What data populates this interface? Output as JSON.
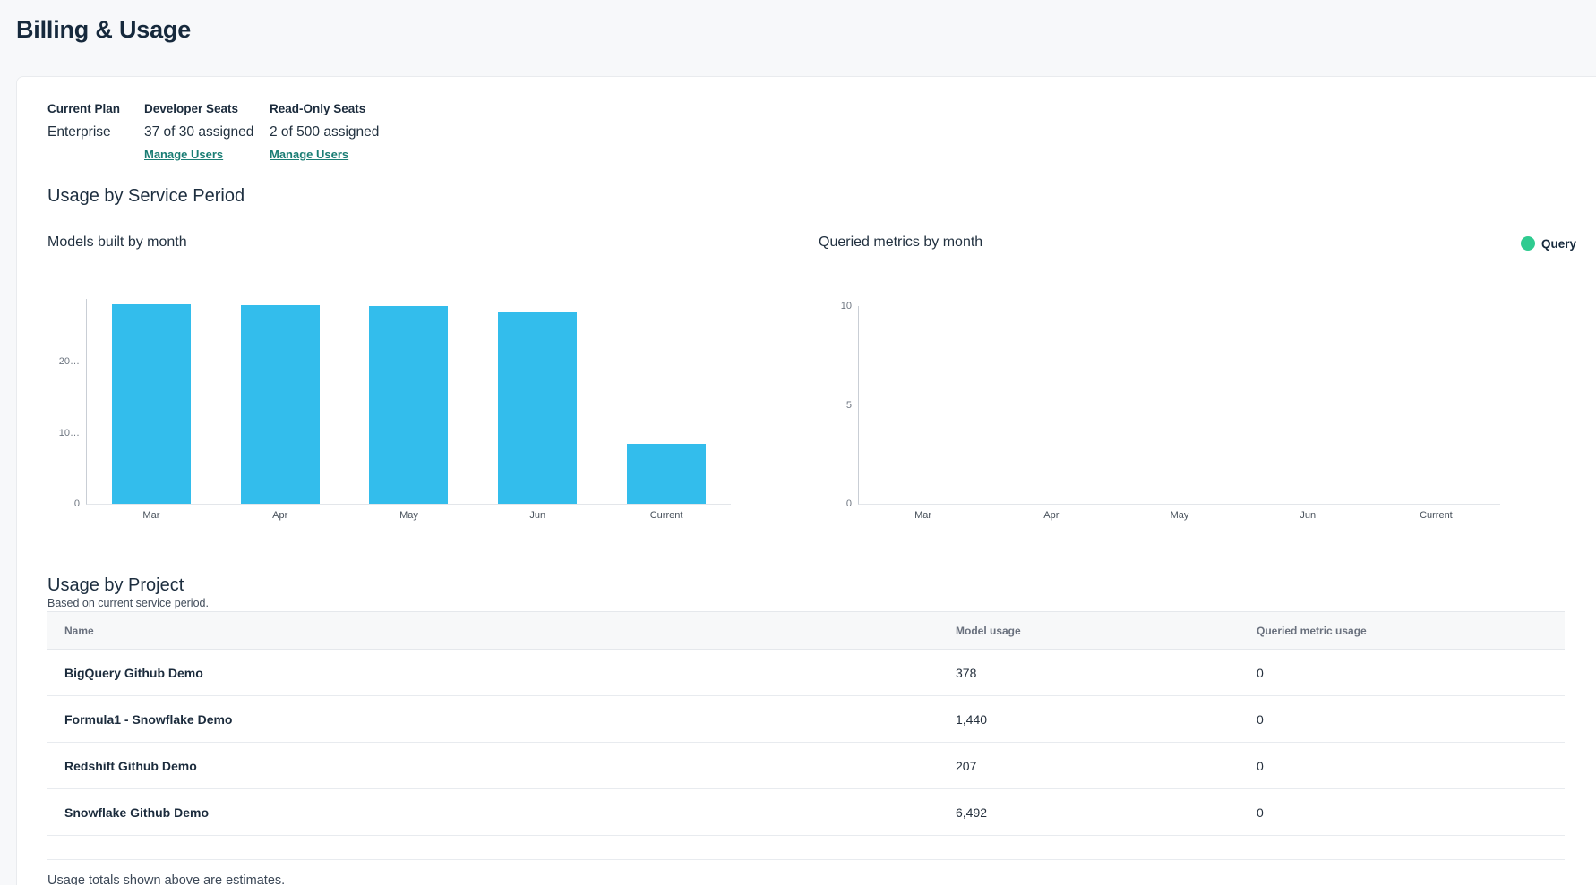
{
  "page": {
    "title": "Billing & Usage"
  },
  "plan": {
    "columns": [
      {
        "label": "Current Plan",
        "value": "Enterprise",
        "link": ""
      },
      {
        "label": "Developer Seats",
        "value": "37 of 30 assigned",
        "link": "Manage Users"
      },
      {
        "label": "Read-Only Seats",
        "value": "2 of 500 assigned",
        "link": "Manage Users"
      }
    ]
  },
  "sections": {
    "service_period": "Usage by Service Period",
    "project": "Usage by Project",
    "project_subtitle": "Based on current service period."
  },
  "chart_data": [
    {
      "type": "bar",
      "title": "Models built by month",
      "categories": [
        "Mar",
        "Apr",
        "May",
        "Jun",
        "Current"
      ],
      "values": [
        28000,
        27900,
        27800,
        26900,
        8400
      ],
      "ylim": [
        0,
        28800
      ],
      "yticks": [
        {
          "label": "0",
          "value": 0
        },
        {
          "label": "10…",
          "value": 10000
        },
        {
          "label": "20…",
          "value": 20000
        }
      ],
      "bar_color": "#33BDEC",
      "grid": false,
      "legend": null
    },
    {
      "type": "bar",
      "title": "Queried metrics by month",
      "categories": [
        "Mar",
        "Apr",
        "May",
        "Jun",
        "Current"
      ],
      "values": [
        0,
        0,
        0,
        0,
        0
      ],
      "ylim": [
        0,
        10
      ],
      "yticks": [
        {
          "label": "0",
          "value": 0
        },
        {
          "label": "5",
          "value": 5
        },
        {
          "label": "10",
          "value": 10
        }
      ],
      "bar_color": "#2FCB90",
      "grid": false,
      "legend": {
        "label": "Query",
        "color": "#2FCB90",
        "position": "top-right"
      }
    }
  ],
  "table": {
    "headers": [
      "Name",
      "Model usage",
      "Queried metric usage"
    ],
    "rows": [
      {
        "name": "BigQuery Github Demo",
        "model_usage": "378",
        "queried_metric_usage": "0"
      },
      {
        "name": "Formula1 - Snowflake Demo",
        "model_usage": "1,440",
        "queried_metric_usage": "0"
      },
      {
        "name": "Redshift Github Demo",
        "model_usage": "207",
        "queried_metric_usage": "0"
      },
      {
        "name": "Snowflake Github Demo",
        "model_usage": "6,492",
        "queried_metric_usage": "0"
      }
    ]
  },
  "footnote": "Usage totals shown above are estimates.",
  "colors": {
    "accent_link": "#1A7D74",
    "bar_blue": "#33BDEC",
    "legend_green": "#2FCB90",
    "navy": "#16293C",
    "page_bg": "#F7F8FA"
  }
}
